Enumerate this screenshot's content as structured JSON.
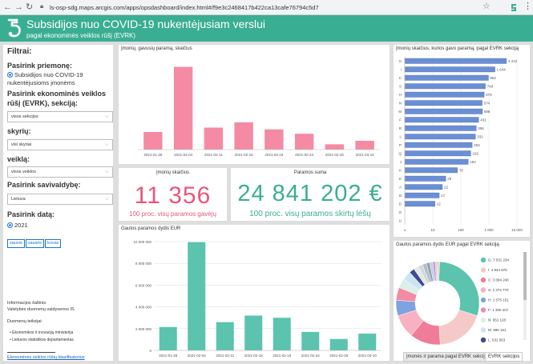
{
  "browser": {
    "url": "ls-osp-sdg.maps.arcgis.com/apps/opsdashboard/index.html#/f9e3c2468417b422ca13cafe76794c5d7"
  },
  "header": {
    "title": "Subsidijos nuo COVID-19 nukentėjusiam verslui",
    "subtitle": "pagal ekonominės veiklos rūšį (EVRK)"
  },
  "sidebar": {
    "filters_title": "Filtrai:",
    "measure_label": "Pasirink priemonę:",
    "measure_option": "Subsidijos nuo COVID-19 nukentėjusioms įmonėms",
    "evrk_label": "Pasirink ekonominės veiklos rūšį (EVRK), sekciją:",
    "evrk_value": "visos sekcijos",
    "branch_label": "skyrių:",
    "branch_value": "visi skyriai",
    "activity_label": "veiklą:",
    "activity_value": "visos veiklos",
    "municipality_label": "Pasirink savivaldybę:",
    "municipality_value": "Lietuva",
    "date_label": "Pasirink datą:",
    "date_option": "2021",
    "months": [
      "sausis",
      "vasaris",
      "kovas"
    ],
    "data_source_title": "Informacijos šaltinis:",
    "data_source_text": "Valstybės duomenų valdysenos IS",
    "providers_title": "Duomenų teikėjai:",
    "providers": [
      "Ekonomikos ir inovacijų ministerija",
      "Lietuvos statistikos departamentas"
    ],
    "classifier_link": "Ekonominės veiklos rūšių klasifikatorius"
  },
  "kpi_companies": {
    "title": "Įmonių skaičius",
    "value": "11 356",
    "sub": "100 proc. visų paramos gavėjų",
    "color": "#e8577a"
  },
  "kpi_sum": {
    "title": "Paramos suma",
    "value": "24 841 202 €",
    "sub": "100 proc. visų paramos skirtų lėšų",
    "color": "#3aae92"
  },
  "tabs": {
    "tab1": "Įmonės ir parama pagal EVRK sekciją",
    "tab2": "EVRK sekcijos"
  },
  "chart_data": [
    {
      "type": "bar",
      "title": "Įmonių, gavusių paramą, skaičius",
      "categories": [
        "2021-01-28",
        "2021-02-04",
        "2021-02-11",
        "2021-02-18",
        "2021-02-19",
        "2021-02-24",
        "2021-02-26",
        "2021-03-10"
      ],
      "values": [
        1000,
        4700,
        1250,
        1550,
        1150,
        900,
        300,
        500
      ],
      "ylim": [
        0,
        5000
      ],
      "color": "#f48aa3",
      "xlabel": "",
      "ylabel": ""
    },
    {
      "type": "bar",
      "title": "Gautos paramos dydis EUR",
      "categories": [
        "2021-01-28",
        "2021-02-04",
        "2021-02-11",
        "2021-02-18",
        "2021-02-19",
        "2021-02-24",
        "2021-02-26",
        "2021-03-10"
      ],
      "values": [
        2150000,
        9950000,
        2600000,
        3200000,
        3000000,
        1700000,
        1050000,
        1550000
      ],
      "ylim": [
        0,
        10000000
      ],
      "yticks": [
        "0",
        "2 000 000",
        "4 000 000",
        "6 000 000",
        "8 000 000",
        "10 000 000"
      ],
      "color": "#5bc3ae",
      "xlabel": "",
      "ylabel": ""
    },
    {
      "type": "bar",
      "orientation": "horizontal",
      "title": "Įmonių skaičius, kurios gavo paramą, pagal EVRK sekciją",
      "categories": [
        "G",
        "I",
        "C",
        "S",
        "H",
        "N",
        "M",
        "F",
        "R",
        "L",
        "P",
        "Q",
        "J",
        "K",
        "E",
        "A",
        "B",
        "D",
        "O",
        "U"
      ],
      "values": [
        4242,
        1644,
        962,
        749,
        679,
        574,
        588,
        431,
        356,
        332,
        253,
        226,
        184,
        76,
        29,
        22,
        17,
        12,
        0,
        0
      ],
      "labels": [
        "4 242",
        "1 644",
        "962",
        "749",
        "679",
        "574",
        "588",
        "431",
        "356",
        "332",
        "253",
        "226",
        "184",
        "76",
        "29",
        "22",
        "17",
        "12",
        "",
        ""
      ],
      "xscale": "log",
      "xticks": [
        "1",
        "10",
        "100",
        "1 000",
        "10 000"
      ],
      "color": "#6b8fd4",
      "xlabel": "",
      "ylabel": ""
    },
    {
      "type": "pie",
      "variant": "donut",
      "title": "Gautos paramos dydis EUR pagal EVRK sekciją",
      "legend": [
        {
          "label": "G",
          "value": "7 531 234",
          "color": "#5bc3ae"
        },
        {
          "label": "I",
          "value": "4 944 875",
          "color": "#f6c9c9"
        },
        {
          "label": "C",
          "value": "3 084 246",
          "color": "#ef7d99"
        },
        {
          "label": "S",
          "value": "2 374 770",
          "color": "#f7b1c0"
        },
        {
          "label": "H",
          "value": "1 575 151",
          "color": "#7fa3e0"
        },
        {
          "label": "F",
          "value": "1 300 207",
          "color": "#f28ca5"
        },
        {
          "label": "N",
          "value": "951 128",
          "color": "#dcefe8"
        },
        {
          "label": "M",
          "value": "896 161",
          "color": "#cce3f5"
        },
        {
          "label": "L",
          "value": "531 563",
          "color": "#3c4a90"
        }
      ],
      "values": [
        7531234,
        4944875,
        3084246,
        2374770,
        1575151,
        1300207,
        951128,
        896161,
        531563,
        500000,
        450000,
        400000,
        350000,
        300000,
        250000,
        200000,
        150000,
        100000
      ]
    }
  ]
}
